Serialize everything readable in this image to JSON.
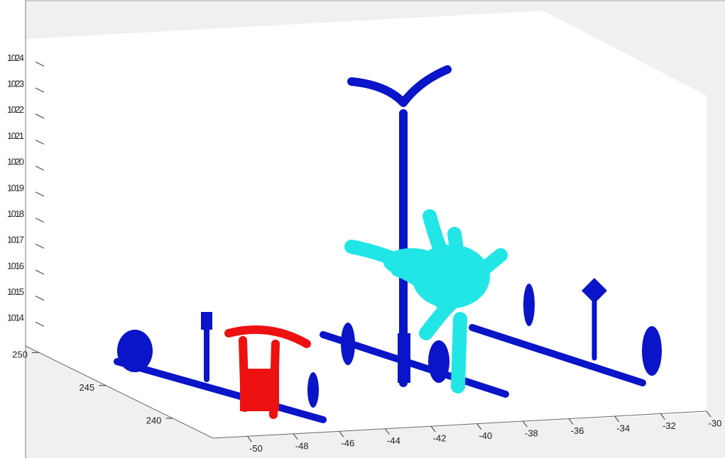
{
  "chart_data": {
    "type": "scatter3d",
    "xlim": [
      -51.5,
      -30
    ],
    "xticks": [
      -50,
      -48,
      -46,
      -44,
      -42,
      -40,
      -38,
      -36,
      -34,
      -32,
      -30
    ],
    "ylim": [
      237,
      251
    ],
    "yticks": [
      240,
      245,
      250
    ],
    "zlim": [
      1013,
      1024.8
    ],
    "zticks": [
      1014,
      1015,
      1016,
      1017,
      1018,
      1019,
      1020,
      1021,
      1022,
      1023,
      1024
    ]
  }
}
